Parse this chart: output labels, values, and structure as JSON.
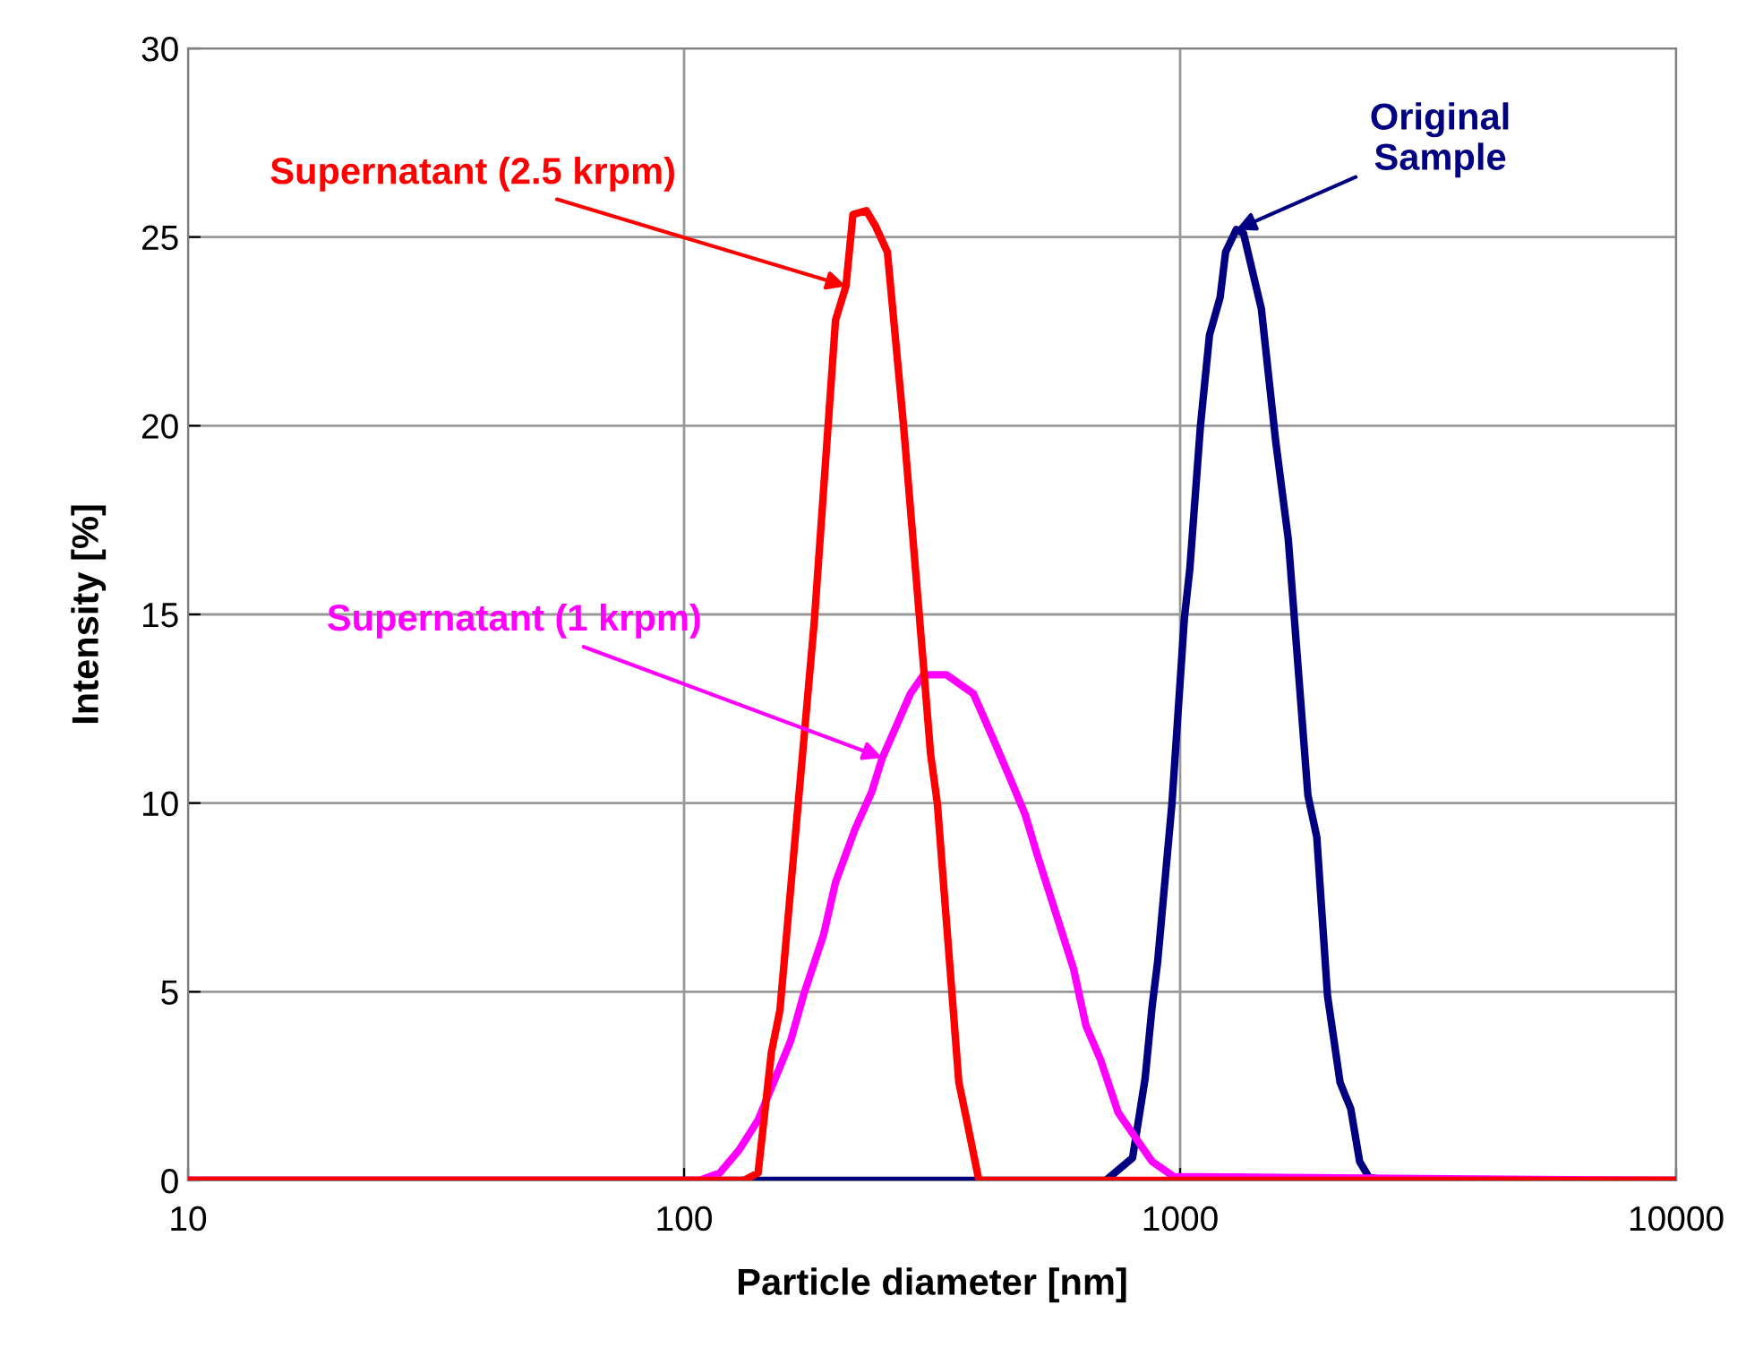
{
  "chart_data": {
    "type": "line",
    "xlabel": "Particle diameter [nm]",
    "ylabel": "Intensity [%]",
    "log": "x",
    "xlim": [
      10,
      10000
    ],
    "xticks": [
      10,
      100,
      1000,
      10000
    ],
    "ylim": [
      0,
      30
    ],
    "yticks": [
      0,
      5,
      10,
      15,
      20,
      25,
      30
    ],
    "grid": true,
    "legend": false,
    "marker": "none",
    "line_style": "solid",
    "series": [
      {
        "color": "#000080",
        "x": [
          10,
          708,
          802,
          850,
          878,
          901,
          963,
          1020,
          1046,
          1099,
          1146,
          1204,
          1235,
          1298,
          1342,
          1458,
          1558,
          1652,
          1810,
          1886,
          1982,
          2101,
          2208,
          2301,
          2399,
          2564,
          10000
        ],
        "values": [
          0,
          0,
          0.6,
          2.7,
          4.6,
          5.8,
          10,
          14.9,
          16.2,
          20,
          22.4,
          23.4,
          24.6,
          25.2,
          25.1,
          23.1,
          19.6,
          17.0,
          10.2,
          9.1,
          4.9,
          2.6,
          1.9,
          0.5,
          0.1,
          0,
          0
        ]
      },
      {
        "color": "#ff00ff",
        "x": [
          10,
          107.5,
          118,
          129,
          141,
          164,
          174,
          191,
          202,
          221,
          239,
          251,
          286,
          304,
          338,
          383,
          420,
          456,
          487,
          516,
          610,
          646,
          691,
          750,
          878,
          971,
          10000
        ],
        "values": [
          0,
          0,
          0.2,
          0.8,
          1.6,
          3.7,
          4.9,
          6.5,
          7.9,
          9.3,
          10.3,
          11.2,
          12.9,
          13.4,
          13.4,
          12.9,
          11.7,
          10.6,
          9.7,
          8.6,
          5.6,
          4.1,
          3.2,
          1.8,
          0.5,
          0.1,
          0
        ]
      },
      {
        "color": "#ff0000",
        "x": [
          10,
          132,
          141,
          150,
          156,
          183,
          202,
          212,
          219,
          233,
          243,
          257,
          277,
          304,
          314,
          324,
          358,
          370,
          393,
          10000
        ],
        "values": [
          0,
          0,
          0.2,
          3.4,
          4.5,
          14.8,
          22.8,
          23.7,
          25.6,
          25.7,
          25.3,
          24.6,
          20,
          13.6,
          11.3,
          10,
          2.6,
          1.7,
          0,
          0
        ]
      }
    ],
    "annotations": [
      {
        "text": "Original\nSample",
        "x": 1298,
        "y": 25.2
      },
      {
        "text": "Supernatant (1 krpm)",
        "x": 251,
        "y": 11.2
      },
      {
        "text": "Supernatant (2.5 krpm)",
        "x": 212,
        "y": 23.7
      }
    ]
  }
}
